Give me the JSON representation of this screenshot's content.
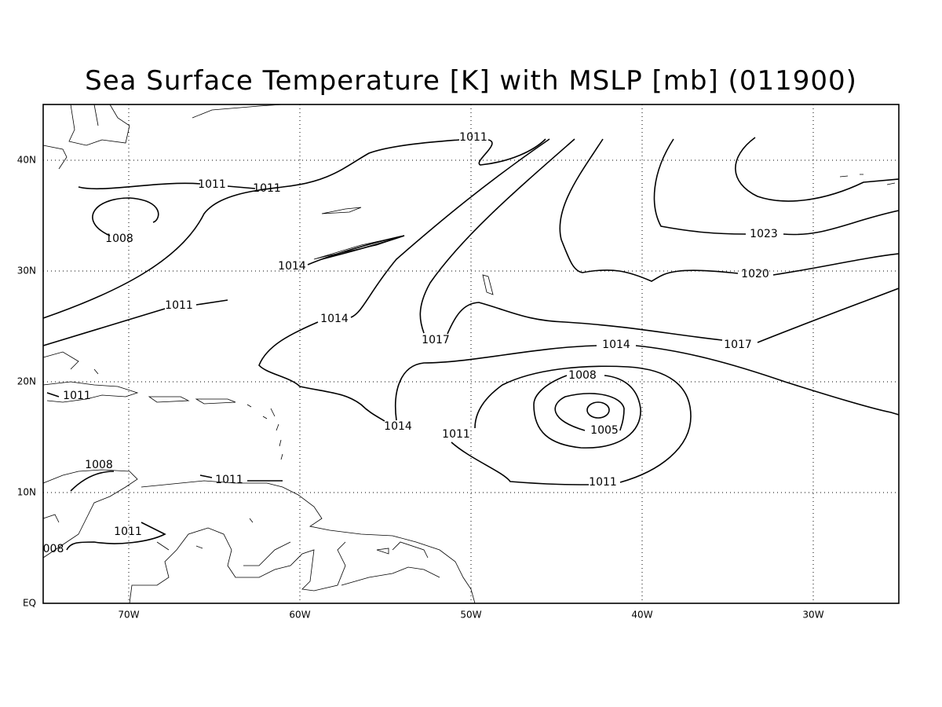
{
  "map": {
    "title": "Sea Surface Temperature [K] with MSLP [mb] (011900)",
    "lon_labels": [
      "70W",
      "60W",
      "50W",
      "40W",
      "30W"
    ],
    "lat_labels": [
      "EQ",
      "10N",
      "20N",
      "30N",
      "40N"
    ],
    "contour_labels": [
      "1011",
      "1011",
      "1011",
      "1008",
      "1014",
      "1011",
      "1014",
      "1017",
      "1014",
      "1017",
      "1023",
      "1020",
      "1008",
      "1005",
      "1014",
      "1011",
      "1011",
      "1011",
      "1008",
      "1011",
      "1011",
      "008"
    ]
  }
}
